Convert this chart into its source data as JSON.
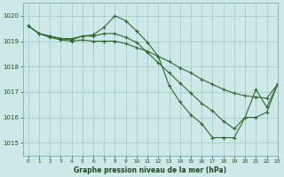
{
  "background_color": "#cce8e8",
  "grid_color": "#a0c8c8",
  "line_color": "#2d6a2d",
  "text_color": "#1a4a1a",
  "xlabel": "Graphe pression niveau de la mer (hPa)",
  "ylim": [
    1014.5,
    1020.5
  ],
  "xlim": [
    -0.5,
    23
  ],
  "yticks": [
    1015,
    1016,
    1017,
    1018,
    1019,
    1020
  ],
  "xticks": [
    0,
    1,
    2,
    3,
    4,
    5,
    6,
    7,
    8,
    9,
    10,
    11,
    12,
    13,
    14,
    15,
    16,
    17,
    18,
    19,
    20,
    21,
    22,
    23
  ],
  "lines": [
    {
      "x": [
        0,
        1,
        2,
        3,
        4,
        5,
        6,
        7,
        8,
        9,
        10,
        11,
        12,
        13,
        14,
        15,
        16,
        17,
        18,
        19,
        20,
        21,
        22,
        23
      ],
      "y": [
        1019.6,
        1019.3,
        1019.2,
        1019.1,
        1019.1,
        1019.2,
        1019.25,
        1019.55,
        1020.0,
        1019.8,
        1019.4,
        1018.95,
        1018.4,
        1017.25,
        1016.6,
        1016.1,
        1015.75,
        1015.2,
        1015.2,
        1015.2,
        1016.0,
        1017.1,
        1016.4,
        1017.3
      ]
    },
    {
      "x": [
        0,
        1,
        2,
        3,
        4,
        5,
        6,
        7,
        8,
        9,
        10,
        11,
        12,
        13,
        14,
        15,
        16,
        17,
        18,
        19,
        20,
        21,
        22,
        23
      ],
      "y": [
        1019.6,
        1019.3,
        1019.2,
        1019.1,
        1019.05,
        1019.2,
        1019.2,
        1019.3,
        1019.3,
        1019.15,
        1018.95,
        1018.55,
        1018.15,
        1017.75,
        1017.35,
        1016.95,
        1016.55,
        1016.25,
        1015.85,
        1015.55,
        1016.0,
        1016.0,
        1016.2,
        1017.3
      ]
    },
    {
      "x": [
        0,
        1,
        2,
        3,
        4,
        5,
        6,
        7,
        8,
        9,
        10,
        11,
        12,
        13,
        14,
        15,
        16,
        17,
        18,
        19,
        20,
        21,
        22,
        23
      ],
      "y": [
        1019.6,
        1019.3,
        1019.15,
        1019.05,
        1019.0,
        1019.05,
        1019.0,
        1019.0,
        1019.0,
        1018.9,
        1018.75,
        1018.6,
        1018.4,
        1018.2,
        1017.95,
        1017.75,
        1017.5,
        1017.3,
        1017.1,
        1016.95,
        1016.85,
        1016.8,
        1016.75,
        1017.3
      ]
    }
  ]
}
